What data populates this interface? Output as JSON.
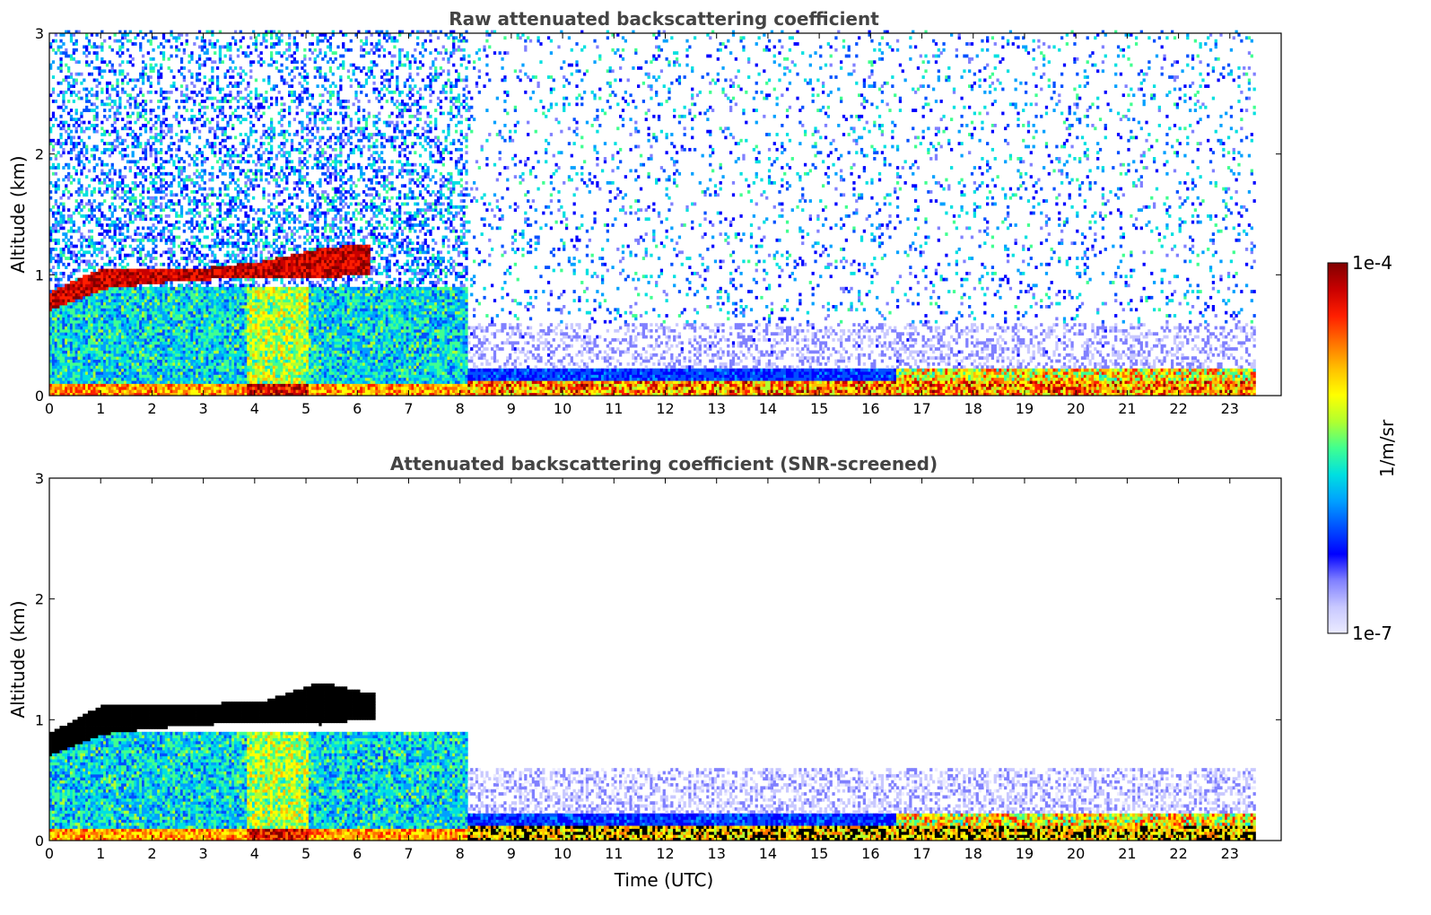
{
  "colors": {
    "background": "#ffffff",
    "title": "#444444",
    "axis": "#000000",
    "colormap": [
      "#ebebff",
      "#c8c8ff",
      "#8080ff",
      "#0000ff",
      "#0050ff",
      "#00a0ff",
      "#00e0e0",
      "#40ff90",
      "#b0ff30",
      "#ffff00",
      "#ffc000",
      "#ff7000",
      "#ff1e00",
      "#c80000",
      "#800000"
    ],
    "saturated": "#000000"
  },
  "chart_data": [
    {
      "type": "heatmap",
      "title": "Raw attenuated backscattering coefficient",
      "xlabel": "",
      "ylabel": "Altitude (km)",
      "xlim": [
        0,
        24
      ],
      "ylim": [
        0,
        3
      ],
      "xticks": [
        "0",
        "1",
        "2",
        "3",
        "4",
        "5",
        "6",
        "7",
        "8",
        "9",
        "10",
        "11",
        "12",
        "13",
        "14",
        "15",
        "16",
        "17",
        "18",
        "19",
        "20",
        "21",
        "22",
        "23"
      ],
      "yticks": [
        "0",
        "1",
        "2",
        "3"
      ],
      "data_end_hour": 23.5,
      "features": [
        {
          "name": "cloud layer",
          "start_h": 0,
          "end_h": 6.2,
          "base_km": [
            0.7,
            0.87,
            0.92,
            0.95,
            0.97,
            0.95,
            1.0
          ],
          "top_km": [
            0.85,
            1.05,
            1.05,
            1.05,
            1.1,
            1.2,
            1.25
          ],
          "level": "high"
        },
        {
          "name": "boundary layer aerosol",
          "start_h": 0,
          "end_h": 8.1,
          "top_km": 0.75,
          "level": "low-medium"
        },
        {
          "name": "surface layer",
          "start_h": 8.1,
          "end_h": 23.5,
          "top_km": 0.25,
          "level": "high"
        }
      ]
    },
    {
      "type": "heatmap",
      "title": "Attenuated backscattering coefficient (SNR-screened)",
      "xlabel": "Time (UTC)",
      "ylabel": "Altitude (km)",
      "xlim": [
        0,
        24
      ],
      "ylim": [
        0,
        3
      ],
      "xticks": [
        "0",
        "1",
        "2",
        "3",
        "4",
        "5",
        "6",
        "7",
        "8",
        "9",
        "10",
        "11",
        "12",
        "13",
        "14",
        "15",
        "16",
        "17",
        "18",
        "19",
        "20",
        "21",
        "22",
        "23"
      ],
      "yticks": [
        "0",
        "1",
        "2",
        "3"
      ],
      "data_end_hour": 23.5,
      "features": [
        {
          "name": "cloud layer (saturated)",
          "start_h": 0,
          "end_h": 6.3,
          "base_km": [
            0.7,
            0.87,
            0.92,
            0.95,
            0.97,
            0.95,
            1.0
          ],
          "top_km": [
            0.88,
            1.12,
            1.12,
            1.12,
            1.15,
            1.3,
            1.2
          ],
          "level": "saturated"
        },
        {
          "name": "boundary layer aerosol",
          "start_h": 0,
          "end_h": 8.1,
          "top_km": 0.9,
          "level": "low-medium"
        },
        {
          "name": "screened surface layer",
          "start_h": 8.1,
          "end_h": 23.5,
          "top_km": 0.6,
          "level": "low"
        }
      ]
    }
  ],
  "colorbar": {
    "max_label": "1e-4",
    "min_label": "1e-7",
    "unit_label": "1/m/sr",
    "range": [
      1e-07,
      0.0001
    ],
    "scale": "log"
  }
}
